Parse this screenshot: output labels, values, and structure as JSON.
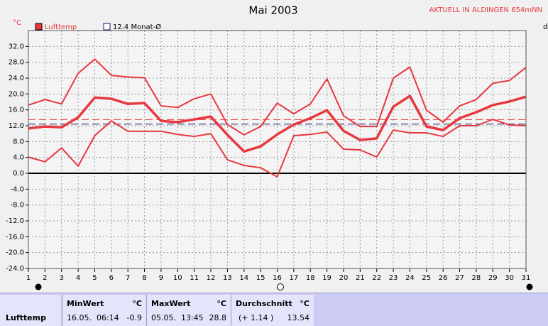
{
  "chart_data": {
    "type": "line",
    "title": "Mai 2003",
    "header": "AKTUELL IN ALDINGEN 654mNN",
    "unit": "°C",
    "edge_label": "d",
    "x": [
      1,
      2,
      3,
      4,
      5,
      6,
      7,
      8,
      9,
      10,
      11,
      12,
      13,
      14,
      15,
      16,
      17,
      18,
      19,
      20,
      21,
      22,
      23,
      24,
      25,
      26,
      27,
      28,
      29,
      30,
      31
    ],
    "xlim": [
      1,
      31
    ],
    "ylim": [
      -24,
      36
    ],
    "yticks": [
      {
        "value": 32,
        "label": "32.0"
      },
      {
        "value": 28,
        "label": "28.0"
      },
      {
        "value": 24,
        "label": "24.0"
      },
      {
        "value": 20,
        "label": "20.0"
      },
      {
        "value": 16,
        "label": "16.0"
      },
      {
        "value": 12,
        "label": "12.0"
      },
      {
        "value": 8,
        "label": "8.0"
      },
      {
        "value": 4,
        "label": "4.0"
      },
      {
        "value": 0,
        "label": "0.0"
      },
      {
        "value": -4,
        "label": "-4.0"
      },
      {
        "value": -8,
        "label": "-8.0"
      },
      {
        "value": -12,
        "label": "-12.0"
      },
      {
        "value": -16,
        "label": "-16.0"
      },
      {
        "value": -20,
        "label": "-20.0"
      },
      {
        "value": -24,
        "label": "-24.0"
      }
    ],
    "grid": true,
    "series": [
      {
        "name": "Lufttemp",
        "color": "#e8383f",
        "values": [
          11.3,
          11.8,
          11.6,
          14.1,
          19.1,
          18.8,
          17.5,
          17.7,
          13.2,
          12.9,
          13.6,
          14.3,
          9.7,
          5.5,
          6.8,
          9.8,
          12.3,
          13.9,
          15.9,
          10.7,
          8.4,
          8.8,
          16.8,
          19.5,
          11.8,
          10.9,
          13.9,
          15.4,
          17.2,
          18.1,
          19.3
        ],
        "max_values": [
          17.2,
          18.6,
          17.5,
          25.2,
          28.8,
          24.7,
          24.3,
          24.1,
          17.0,
          16.6,
          18.8,
          20.0,
          12.3,
          9.7,
          11.8,
          17.7,
          15.0,
          17.5,
          23.8,
          14.5,
          11.8,
          11.8,
          24.0,
          26.8,
          15.9,
          12.9,
          17.0,
          18.6,
          22.7,
          23.4,
          26.7
        ],
        "min_values": [
          4.1,
          2.9,
          6.4,
          1.8,
          9.5,
          13.2,
          10.6,
          10.6,
          10.6,
          9.8,
          9.3,
          10.0,
          3.4,
          2.0,
          1.4,
          -0.9,
          9.5,
          9.8,
          10.4,
          6.1,
          5.9,
          4.1,
          10.9,
          10.2,
          10.2,
          9.3,
          12.0,
          12.0,
          13.6,
          12.2,
          12.0
        ]
      }
    ],
    "reference_lines": [
      {
        "name": "12.4 Monat-Ø",
        "value": 12.4,
        "color": "#1a1a6e"
      },
      {
        "value": 13.54,
        "color": "#e8383f"
      }
    ]
  },
  "stats": {
    "row_label": "Lufttemp",
    "columns": [
      {
        "title": "MinWert",
        "unit": "°C",
        "time": "16.05.  06:14",
        "value": -0.9
      },
      {
        "title": "MaxWert",
        "unit": "°C",
        "time": "05.05.  13:45",
        "value": 28.8
      },
      {
        "title": "Durchschnitt",
        "unit": "°C",
        "time": "(+ 1.14 )",
        "value": 13.54
      }
    ]
  }
}
